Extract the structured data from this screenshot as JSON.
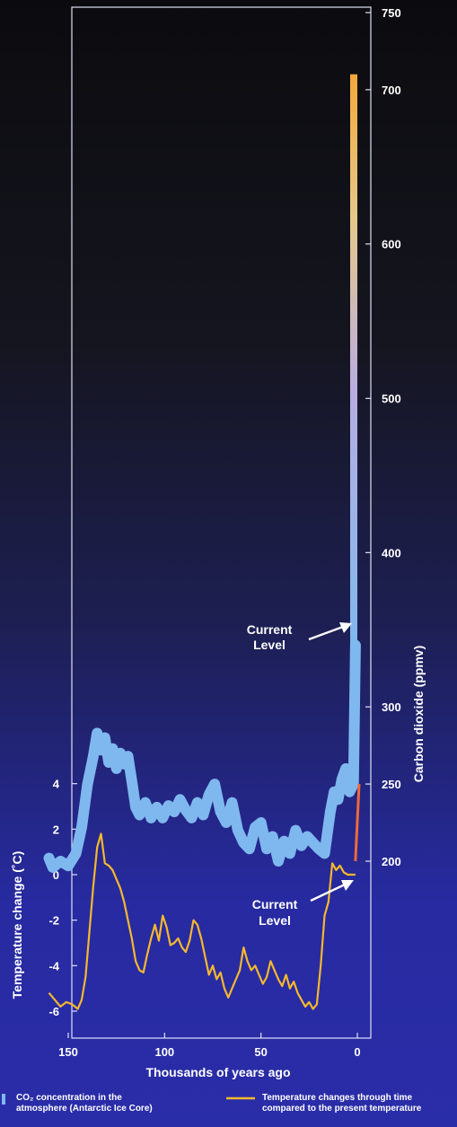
{
  "chart_data": {
    "type": "line",
    "xlabel": "Thousands of years ago",
    "x_ticks": [
      150,
      100,
      50,
      0
    ],
    "xlim": [
      160,
      0
    ],
    "y_left": {
      "label": "Temperature change (˚C)",
      "ticks": [
        4,
        2,
        0,
        -2,
        -4,
        -6
      ],
      "range": [
        -6.5,
        5
      ]
    },
    "y_right": {
      "label": "Carbon dioxide (ppmv)",
      "ticks": [
        750,
        700,
        600,
        500,
        400,
        300,
        250,
        200
      ],
      "range": [
        150,
        750
      ]
    },
    "annotations": [
      {
        "line1": "Current",
        "line2": "Level",
        "series": "co2"
      },
      {
        "line1": "Current",
        "line2": "Level",
        "series": "temperature"
      }
    ],
    "series": [
      {
        "name": "CO₂ concentration in the atmosphere (Antarctic Ice Core)",
        "name_line1": "CO₂ concentration in the",
        "name_line2": "atmosphere (Antarctic Ice Core)",
        "color": "#7fb8ee",
        "band_width": 12,
        "x": [
          160,
          158,
          154,
          150,
          146,
          143,
          140,
          137,
          135,
          133,
          131,
          129,
          127,
          125,
          123,
          121,
          119,
          117,
          115,
          113,
          110,
          107,
          104,
          101,
          98,
          95,
          92,
          89,
          86,
          83,
          80,
          77,
          74,
          71,
          68,
          65,
          62,
          59,
          56,
          53,
          50,
          47,
          44,
          41,
          38,
          35,
          32,
          29,
          26,
          23,
          20,
          17,
          14,
          12,
          10,
          8,
          6,
          4,
          2,
          1
        ],
        "values": [
          202,
          196,
          200,
          197,
          205,
          222,
          250,
          268,
          283,
          272,
          280,
          264,
          273,
          260,
          270,
          263,
          268,
          252,
          235,
          230,
          238,
          228,
          235,
          228,
          236,
          232,
          240,
          233,
          228,
          238,
          230,
          243,
          250,
          232,
          225,
          238,
          220,
          212,
          208,
          222,
          225,
          208,
          216,
          200,
          213,
          205,
          220,
          210,
          216,
          212,
          208,
          205,
          232,
          245,
          240,
          253,
          260,
          245,
          250,
          340
        ]
      },
      {
        "name": "Temperature changes through time compared to the present temperature",
        "name_line1": "Temperature changes through time",
        "name_line2": "compared to the present temperature",
        "color": "#f5b82e",
        "x": [
          160,
          157,
          154,
          151,
          148,
          145,
          143,
          141,
          139,
          137,
          135,
          133,
          131,
          129,
          127,
          125,
          123,
          121,
          119,
          117,
          115,
          113,
          111,
          109,
          107,
          105,
          103,
          101,
          99,
          97,
          95,
          93,
          91,
          89,
          87,
          85,
          83,
          81,
          79,
          77,
          75,
          73,
          71,
          69,
          67,
          65,
          63,
          61,
          59,
          57,
          55,
          53,
          51,
          49,
          47,
          45,
          43,
          41,
          39,
          37,
          35,
          33,
          31,
          29,
          27,
          25,
          23,
          21,
          19,
          17,
          15,
          13,
          11,
          9,
          7,
          5,
          3,
          1
        ],
        "values": [
          -5.2,
          -5.5,
          -5.8,
          -5.6,
          -5.7,
          -5.9,
          -5.5,
          -4.5,
          -2.5,
          -0.5,
          1.2,
          1.8,
          0.5,
          0.4,
          0.2,
          -0.2,
          -0.6,
          -1.2,
          -2.0,
          -2.8,
          -3.8,
          -4.2,
          -4.3,
          -3.5,
          -2.8,
          -2.2,
          -2.9,
          -1.8,
          -2.3,
          -3.1,
          -3.0,
          -2.8,
          -3.2,
          -3.4,
          -2.9,
          -2.0,
          -2.2,
          -2.8,
          -3.6,
          -4.4,
          -4.0,
          -4.6,
          -4.3,
          -5.0,
          -5.4,
          -5.0,
          -4.6,
          -4.2,
          -3.2,
          -3.8,
          -4.2,
          -4.0,
          -4.4,
          -4.8,
          -4.5,
          -3.8,
          -4.2,
          -4.6,
          -4.9,
          -4.4,
          -5.0,
          -4.7,
          -5.2,
          -5.5,
          -5.8,
          -5.6,
          -5.9,
          -5.7,
          -4.0,
          -1.8,
          -1.2,
          0.5,
          0.2,
          0.4,
          0.1,
          0.0,
          0.0,
          0.0
        ]
      }
    ],
    "recent_co2": {
      "x": [
        1,
        0
      ],
      "values": [
        200,
        250
      ]
    }
  }
}
